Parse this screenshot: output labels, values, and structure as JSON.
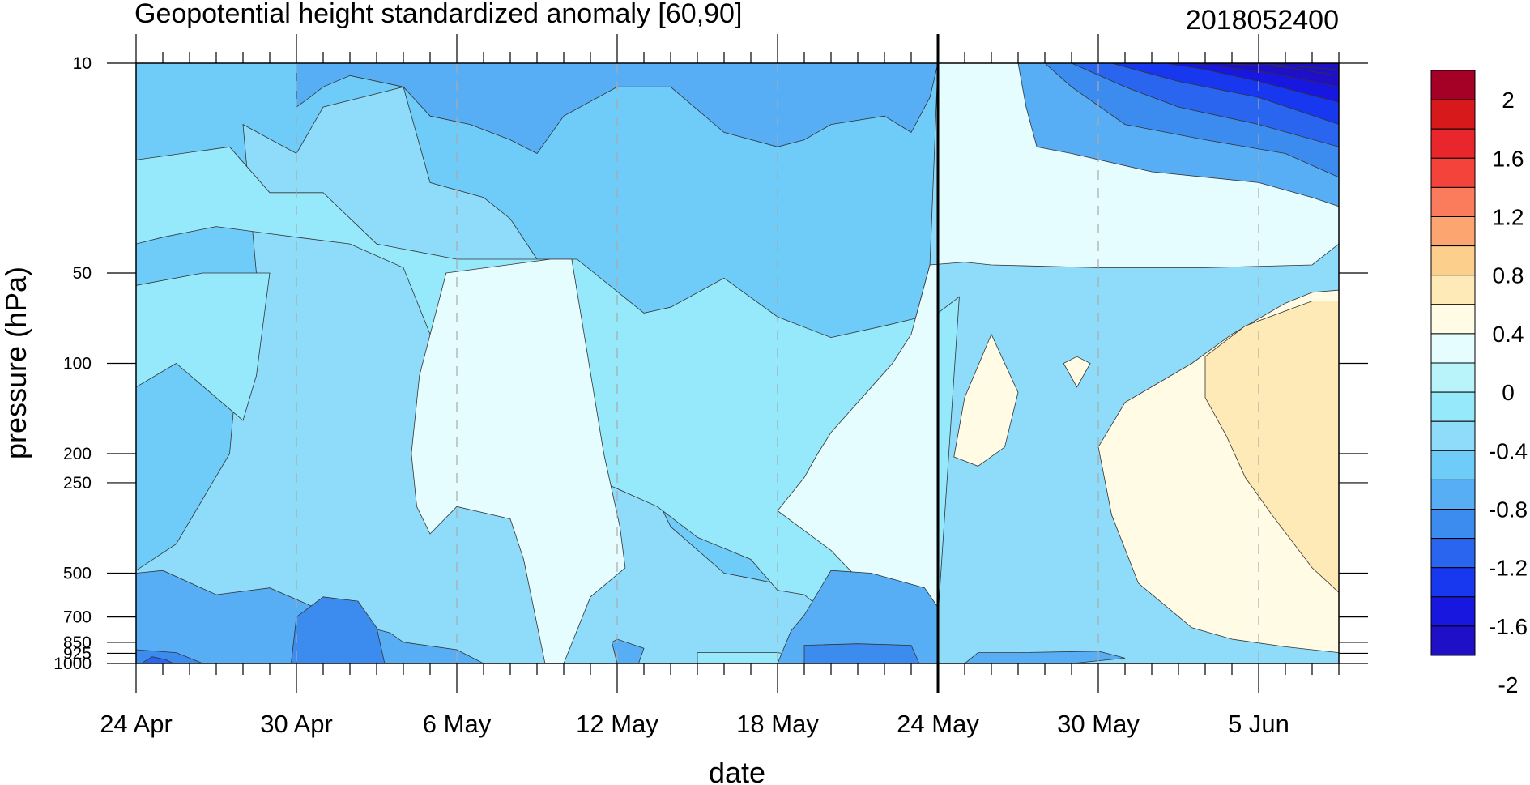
{
  "chart_data": {
    "type": "heatmap",
    "subtype": "filled-contour",
    "title": "Geopotential height standardized anomaly [60,90]",
    "right_title": "2018052400",
    "xlabel": "date",
    "ylabel": "pressure (hPa)",
    "x_ticks": [
      "24 Apr",
      "30 Apr",
      "6 May",
      "12 May",
      "18 May",
      "24 May",
      "30 May",
      "5 Jun"
    ],
    "x_tick_days": [
      0,
      6,
      12,
      18,
      24,
      30,
      36,
      42
    ],
    "xlim_days": [
      0,
      45
    ],
    "y_ticks": [
      "10",
      "50",
      "100",
      "200",
      "250",
      "500",
      "700",
      "850",
      "925",
      "1000"
    ],
    "y_tick_values": [
      10,
      50,
      100,
      200,
      250,
      500,
      700,
      850,
      925,
      1000
    ],
    "ylim": [
      1000,
      10
    ],
    "y_scale": "log",
    "y_inverted": true,
    "forecast_start": "24 May",
    "forecast_start_day": 30,
    "vertical_gridlines": "dashed",
    "colorbar": {
      "labels": [
        "2",
        "1.6",
        "1.2",
        "0.8",
        "0.4",
        "0",
        "-0.4",
        "-0.8",
        "-1.2",
        "-1.6",
        "-2"
      ],
      "label_values": [
        2,
        1.6,
        1.2,
        0.8,
        0.4,
        0,
        -0.4,
        -0.8,
        -1.2,
        -1.6,
        -2
      ],
      "colors": [
        "#a50026",
        "#d7191c",
        "#e8262c",
        "#f4433a",
        "#fb7c5c",
        "#fca571",
        "#fcd08c",
        "#feeab6",
        "#fffbe4",
        "#e6fdff",
        "#b9f4fb",
        "#96e8fb",
        "#8fdcfa",
        "#6fcbf8",
        "#57aef4",
        "#3c8cf0",
        "#2a65f0",
        "#1838ef",
        "#1717e0",
        "#1f10c8"
      ]
    },
    "regions": [
      {
        "value": -0.3,
        "points": [
          [
            0,
            10
          ],
          [
            45,
            10
          ],
          [
            45,
            1000
          ],
          [
            0,
            1000
          ]
        ]
      },
      {
        "value": -0.5,
        "points": [
          [
            0,
            10
          ],
          [
            30,
            10
          ],
          [
            29.7,
            47
          ],
          [
            29,
            80
          ],
          [
            28.3,
            100
          ],
          [
            27,
            135
          ],
          [
            26.3,
            155
          ],
          [
            26,
            170
          ],
          [
            25.7,
            200
          ],
          [
            25,
            220
          ],
          [
            24.5,
            250
          ],
          [
            24.3,
            310
          ],
          [
            24.5,
            500
          ],
          [
            24.3,
            550
          ],
          [
            23,
            520
          ],
          [
            22,
            500
          ],
          [
            20,
            350
          ],
          [
            19,
            230
          ],
          [
            18,
            140
          ],
          [
            17,
            95
          ],
          [
            16,
            60
          ],
          [
            15,
            45
          ],
          [
            14,
            33
          ],
          [
            13,
            28
          ],
          [
            11,
            25
          ],
          [
            10,
            12
          ],
          [
            7,
            14
          ],
          [
            6,
            20
          ],
          [
            4,
            16
          ],
          [
            4.5,
            50
          ],
          [
            3.8,
            100
          ],
          [
            3.5,
            200
          ],
          [
            1.5,
            400
          ],
          [
            0,
            490
          ]
        ]
      },
      {
        "value": -0.5,
        "points": [
          [
            0,
            1000
          ],
          [
            0,
            800
          ],
          [
            1,
            700
          ],
          [
            3,
            870
          ],
          [
            4.5,
            750
          ],
          [
            4.4,
            1000
          ]
        ]
      },
      {
        "value": -0.1,
        "points": [
          [
            0,
            21
          ],
          [
            3.5,
            19
          ],
          [
            5,
            27
          ],
          [
            7,
            27
          ],
          [
            9,
            40
          ],
          [
            12,
            45
          ],
          [
            16.5,
            45
          ],
          [
            19,
            68
          ],
          [
            20,
            65
          ],
          [
            22,
            52
          ],
          [
            24,
            70
          ],
          [
            26,
            82
          ],
          [
            28,
            75
          ],
          [
            30,
            68
          ],
          [
            30.8,
            60
          ],
          [
            30,
            700
          ],
          [
            26,
            700
          ],
          [
            25,
            590
          ],
          [
            24,
            570
          ],
          [
            23,
            450
          ],
          [
            21,
            380
          ],
          [
            19.5,
            300
          ],
          [
            17.5,
            250
          ],
          [
            15.5,
            220
          ],
          [
            13.5,
            170
          ],
          [
            12,
            130
          ],
          [
            11,
            80
          ],
          [
            10,
            48
          ],
          [
            8,
            40
          ],
          [
            6,
            38
          ],
          [
            5,
            37
          ],
          [
            3,
            35
          ],
          [
            1,
            38
          ],
          [
            0,
            40
          ]
        ]
      },
      {
        "value": -0.1,
        "points": [
          [
            0,
            55
          ],
          [
            2.5,
            50
          ],
          [
            5,
            50
          ],
          [
            4.5,
            110
          ],
          [
            4,
            155
          ],
          [
            1.5,
            100
          ],
          [
            0,
            120
          ]
        ]
      },
      {
        "value": -0.1,
        "points": [
          [
            21,
            1000
          ],
          [
            21,
            920
          ],
          [
            24,
            920
          ],
          [
            25,
            950
          ],
          [
            26,
            1000
          ]
        ]
      },
      {
        "value": 0.3,
        "points": [
          [
            11.6,
            50
          ],
          [
            15.5,
            45
          ],
          [
            16.3,
            45
          ],
          [
            17.5,
            200
          ],
          [
            18.1,
            350
          ],
          [
            18.3,
            480
          ],
          [
            17,
            600
          ],
          [
            16,
            1000
          ],
          [
            15.3,
            1000
          ],
          [
            14.5,
            450
          ],
          [
            14,
            330
          ],
          [
            12,
            300
          ],
          [
            11,
            370
          ],
          [
            10.5,
            300
          ],
          [
            10.3,
            200
          ],
          [
            10.6,
            110
          ]
        ]
      },
      {
        "value": 0.3,
        "points": [
          [
            30,
            10
          ],
          [
            45,
            10
          ],
          [
            45,
            40
          ],
          [
            44,
            47
          ],
          [
            40,
            48
          ],
          [
            36,
            48
          ],
          [
            32,
            47
          ],
          [
            31,
            46
          ],
          [
            29.7,
            47
          ],
          [
            29,
            80
          ],
          [
            28.3,
            100
          ],
          [
            27,
            135
          ],
          [
            26,
            170
          ],
          [
            25.5,
            200
          ],
          [
            25,
            240
          ],
          [
            24,
            310
          ],
          [
            26,
            420
          ],
          [
            27,
            520
          ],
          [
            30,
            1000
          ]
        ]
      },
      {
        "value": 0.5,
        "points": [
          [
            30.6,
            205
          ],
          [
            31,
            130
          ],
          [
            32,
            80
          ],
          [
            33,
            125
          ],
          [
            32.5,
            190
          ],
          [
            31.5,
            220
          ]
        ]
      },
      {
        "value": 0.5,
        "points": [
          [
            39.5,
            100
          ],
          [
            41,
            80
          ],
          [
            43,
            63
          ],
          [
            44,
            58
          ],
          [
            45,
            57
          ],
          [
            45,
            920
          ],
          [
            43,
            880
          ],
          [
            41,
            830
          ],
          [
            39.5,
            760
          ],
          [
            37.5,
            540
          ],
          [
            36.5,
            320
          ],
          [
            36,
            190
          ],
          [
            37,
            135
          ]
        ]
      },
      {
        "value": 0.5,
        "points": [
          [
            35.2,
            95
          ],
          [
            35.7,
            100
          ],
          [
            35.2,
            120
          ],
          [
            34.7,
            100
          ]
        ]
      },
      {
        "value": 0.7,
        "points": [
          [
            40,
            95
          ],
          [
            41.5,
            75
          ],
          [
            44,
            62
          ],
          [
            45,
            62
          ],
          [
            45,
            580
          ],
          [
            44,
            480
          ],
          [
            42.5,
            320
          ],
          [
            41.5,
            240
          ],
          [
            40.8,
            175
          ],
          [
            40,
            130
          ]
        ]
      },
      {
        "value": -0.7,
        "points": [
          [
            33,
            10
          ],
          [
            45,
            10
          ],
          [
            45,
            30
          ],
          [
            44,
            28
          ],
          [
            42,
            25
          ],
          [
            38,
            23
          ],
          [
            35,
            20
          ],
          [
            33.7,
            19
          ],
          [
            33.3,
            14
          ]
        ]
      },
      {
        "value": -0.9,
        "points": [
          [
            34,
            10
          ],
          [
            45,
            10
          ],
          [
            45,
            24
          ],
          [
            43,
            20
          ],
          [
            40,
            18
          ],
          [
            37,
            16
          ],
          [
            35,
            12
          ]
        ]
      },
      {
        "value": -1.1,
        "points": [
          [
            35,
            10
          ],
          [
            45,
            10
          ],
          [
            45,
            19
          ],
          [
            42,
            16
          ],
          [
            39,
            14
          ],
          [
            37,
            12
          ]
        ]
      },
      {
        "value": -1.3,
        "points": [
          [
            36.5,
            10
          ],
          [
            45,
            10
          ],
          [
            45,
            16
          ],
          [
            42,
            13
          ],
          [
            39,
            11.5
          ]
        ]
      },
      {
        "value": -1.5,
        "points": [
          [
            38.5,
            10
          ],
          [
            45,
            10
          ],
          [
            45,
            13.5
          ],
          [
            42,
            11.5
          ],
          [
            40,
            10.5
          ]
        ]
      },
      {
        "value": -1.7,
        "points": [
          [
            39.5,
            10
          ],
          [
            45,
            10
          ],
          [
            45,
            12
          ],
          [
            42.5,
            10.8
          ]
        ]
      },
      {
        "value": -1.9,
        "points": [
          [
            40.5,
            10
          ],
          [
            45,
            10
          ],
          [
            45,
            11
          ],
          [
            43,
            10.3
          ]
        ]
      },
      {
        "value": -2.1,
        "points": [
          [
            41.8,
            10
          ],
          [
            45,
            10
          ],
          [
            45,
            10.5
          ]
        ]
      },
      {
        "value": -0.7,
        "points": [
          [
            6,
            10
          ],
          [
            30,
            10
          ],
          [
            29.7,
            13
          ],
          [
            29,
            17
          ],
          [
            28,
            15
          ],
          [
            26,
            16
          ],
          [
            25,
            18
          ],
          [
            24,
            19
          ],
          [
            22,
            17
          ],
          [
            20,
            12
          ],
          [
            18,
            12
          ],
          [
            16,
            15
          ],
          [
            15,
            20
          ],
          [
            14,
            18
          ],
          [
            12.5,
            16
          ],
          [
            11,
            15
          ],
          [
            10,
            12
          ],
          [
            8,
            11
          ],
          [
            7,
            12
          ],
          [
            6.5,
            13
          ],
          [
            6,
            14
          ]
        ]
      },
      {
        "value": -0.7,
        "points": [
          [
            0,
            500
          ],
          [
            1,
            490
          ],
          [
            3,
            590
          ],
          [
            5,
            560
          ],
          [
            6.5,
            640
          ],
          [
            8,
            730
          ],
          [
            9.5,
            790
          ],
          [
            10,
            850
          ],
          [
            12,
            900
          ],
          [
            13,
            1000
          ],
          [
            0,
            1000
          ]
        ]
      },
      {
        "value": -0.7,
        "points": [
          [
            26,
            490
          ],
          [
            27.5,
            500
          ],
          [
            29.5,
            560
          ],
          [
            30,
            650
          ],
          [
            30,
            1000
          ],
          [
            24,
            1000
          ],
          [
            24.5,
            780
          ],
          [
            25,
            690
          ]
        ]
      },
      {
        "value": -0.7,
        "points": [
          [
            17.8,
            850
          ],
          [
            18,
            830
          ],
          [
            19,
            890
          ],
          [
            18.8,
            1000
          ],
          [
            18,
            1000
          ]
        ]
      },
      {
        "value": -0.7,
        "points": [
          [
            31.5,
            920
          ],
          [
            33,
            920
          ],
          [
            36,
            910
          ],
          [
            37,
            960
          ],
          [
            35,
            1000
          ],
          [
            31,
            1000
          ]
        ]
      },
      {
        "value": -0.9,
        "points": [
          [
            5.8,
            1000
          ],
          [
            6,
            700
          ],
          [
            7,
            600
          ],
          [
            8.3,
            620
          ],
          [
            9,
            760
          ],
          [
            9.3,
            1000
          ]
        ]
      },
      {
        "value": -0.9,
        "points": [
          [
            0,
            900
          ],
          [
            1.5,
            920
          ],
          [
            2.5,
            1000
          ],
          [
            0,
            1000
          ]
        ]
      },
      {
        "value": -0.9,
        "points": [
          [
            25,
            870
          ],
          [
            27,
            860
          ],
          [
            29,
            870
          ],
          [
            29.3,
            1000
          ],
          [
            25,
            1000
          ]
        ]
      },
      {
        "value": -1.1,
        "points": [
          [
            0.2,
            1000
          ],
          [
            0.6,
            950
          ],
          [
            1.1,
            970
          ],
          [
            1.4,
            1000
          ]
        ]
      }
    ]
  }
}
